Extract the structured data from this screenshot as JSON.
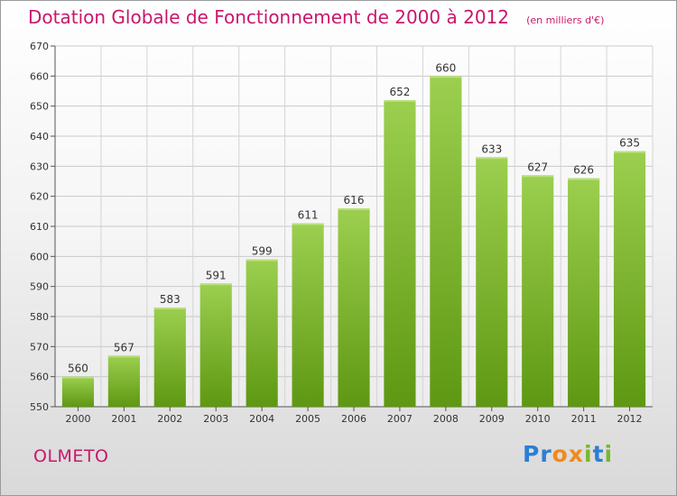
{
  "chart_data": {
    "type": "bar",
    "title": "Dotation Globale de Fonctionnement de 2000 à 2012",
    "subtitle": "(en milliers d'€)",
    "categories": [
      "2000",
      "2001",
      "2002",
      "2003",
      "2004",
      "2005",
      "2006",
      "2007",
      "2008",
      "2009",
      "2010",
      "2011",
      "2012"
    ],
    "values": [
      560,
      567,
      583,
      591,
      599,
      611,
      616,
      652,
      660,
      633,
      627,
      626,
      635
    ],
    "ylim": [
      550,
      670
    ],
    "yticks": [
      550,
      560,
      570,
      580,
      590,
      600,
      610,
      620,
      630,
      640,
      650,
      660,
      670
    ],
    "grid": true,
    "colors": {
      "bar_top": "#9ccf4f",
      "bar_bottom": "#5e9812",
      "title": "#c8176b"
    }
  },
  "footer": {
    "commune": "OLMETO",
    "logo": {
      "letters": [
        "P",
        "r",
        "o",
        "x",
        "i",
        "t",
        "i"
      ],
      "colors": [
        "#2a7fd4",
        "#2a7fd4",
        "#f08a1c",
        "#f08a1c",
        "#7ab82a",
        "#2a7fd4",
        "#7ab82a"
      ]
    }
  }
}
